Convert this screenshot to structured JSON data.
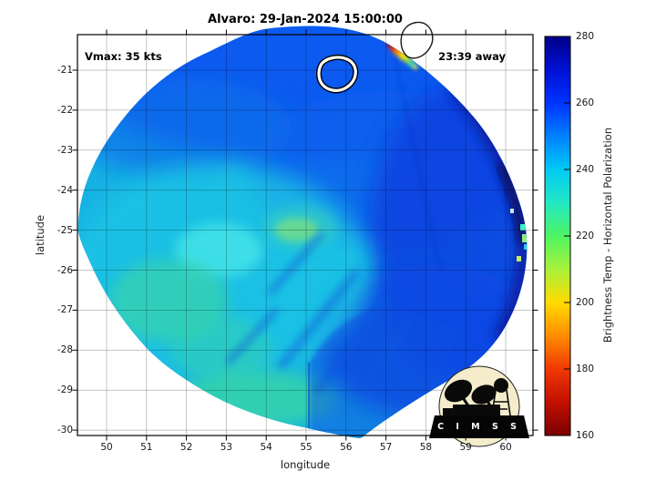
{
  "title": "Alvaro: 29-Jan-2024 15:00:00",
  "annotations": {
    "vmax": "Vmax: 35 kts",
    "eta": "23:39 away"
  },
  "axes": {
    "xlabel": "longitude",
    "ylabel": "latitude",
    "x_ticks": [
      50,
      51,
      52,
      53,
      54,
      55,
      56,
      57,
      58,
      59,
      60
    ],
    "y_ticks": [
      -21,
      -22,
      -23,
      -24,
      -25,
      -26,
      -27,
      -28,
      -29,
      -30
    ]
  },
  "colorbar": {
    "label": "Brightness Temp - Horizontal Polarization",
    "ticks": [
      280,
      260,
      240,
      220,
      200,
      180,
      160
    ],
    "min": 160,
    "max": 280
  },
  "logo": {
    "text": "C I M S S"
  },
  "chart_data": {
    "type": "heatmap",
    "title": "Alvaro: 29-Jan-2024 15:00:00",
    "storm_name": "Alvaro",
    "timestamp": "29-Jan-2024 15:00:00",
    "xlabel": "longitude",
    "ylabel": "latitude",
    "xlim": [
      49.3,
      60.7
    ],
    "ylim": [
      -30.2,
      -20.1
    ],
    "x_ticks": [
      50,
      51,
      52,
      53,
      54,
      55,
      56,
      57,
      58,
      59,
      60
    ],
    "y_ticks": [
      -21,
      -22,
      -23,
      -24,
      -25,
      -26,
      -27,
      -28,
      -29,
      -30
    ],
    "grid": true,
    "legend_position": "none",
    "colorbar": {
      "label": "Brightness Temp - Horizontal Polarization",
      "orientation": "vertical-right",
      "range": [
        160,
        280
      ],
      "ticks": [
        280,
        260,
        240,
        220,
        200,
        180,
        160
      ],
      "colormap_stops": [
        {
          "value": 280,
          "color": "#000089"
        },
        {
          "value": 260,
          "color": "#0033ff"
        },
        {
          "value": 250,
          "color": "#0080ff"
        },
        {
          "value": 240,
          "color": "#00caf5"
        },
        {
          "value": 230,
          "color": "#23e8c3"
        },
        {
          "value": 220,
          "color": "#4ef462"
        },
        {
          "value": 210,
          "color": "#a8f23c"
        },
        {
          "value": 200,
          "color": "#ffdb00"
        },
        {
          "value": 190,
          "color": "#ff8c00"
        },
        {
          "value": 180,
          "color": "#f03800"
        },
        {
          "value": 170,
          "color": "#c21000"
        },
        {
          "value": 160,
          "color": "#7a0000"
        }
      ]
    },
    "annotations": [
      {
        "text": "Vmax: 35 kts",
        "position": "top-left"
      },
      {
        "text": "23:39 away",
        "position": "top-right"
      }
    ],
    "overlays": [
      {
        "name": "storm-center-contour",
        "style": "white contour with black edges",
        "lon": 55.8,
        "lat": -21.2
      },
      {
        "name": "secondary-contour",
        "style": "thin black open contour",
        "lon": 57.8,
        "lat": -20.3
      },
      {
        "name": "cimss-logo",
        "position": "bottom-right of axes"
      }
    ],
    "swath": {
      "shape": "near-circular microwave satellite swath on white background",
      "center": {
        "lon": 54.8,
        "lat": -25.1
      },
      "radius_deg": 5.2,
      "regions": [
        {
          "area": "north, lat -20.5 to -23",
          "brightness_temp": [
            255,
            265
          ],
          "color": "blue"
        },
        {
          "area": "east, lon 56.5 to 60.5",
          "brightness_temp": [
            260,
            278
          ],
          "color": "deep blue with dark navy rim along east edge"
        },
        {
          "area": "center and southwest",
          "brightness_temp": [
            235,
            248
          ],
          "color": "cyan"
        },
        {
          "area": "south-central patches",
          "brightness_temp": [
            225,
            235
          ],
          "color": "green-cyan"
        },
        {
          "area": "small spot near lon 54.8 lat -25",
          "brightness_temp": [
            218,
            228
          ],
          "color": "yellow-green"
        },
        {
          "area": "north-edge streak near lon 57.3 lat -20.5",
          "brightness_temp": [
            170,
            215
          ],
          "color": "red-orange-yellow-green"
        },
        {
          "area": "east edge specks near lon 60.4 lat -24.5",
          "brightness_temp": [
            210,
            235
          ],
          "color": "lime and cyan pixels"
        }
      ],
      "texture": "mottled convective bands, dark-blue diagonal streaks in lower half, vertical swath seam near lon 55.1 in south half"
    }
  }
}
